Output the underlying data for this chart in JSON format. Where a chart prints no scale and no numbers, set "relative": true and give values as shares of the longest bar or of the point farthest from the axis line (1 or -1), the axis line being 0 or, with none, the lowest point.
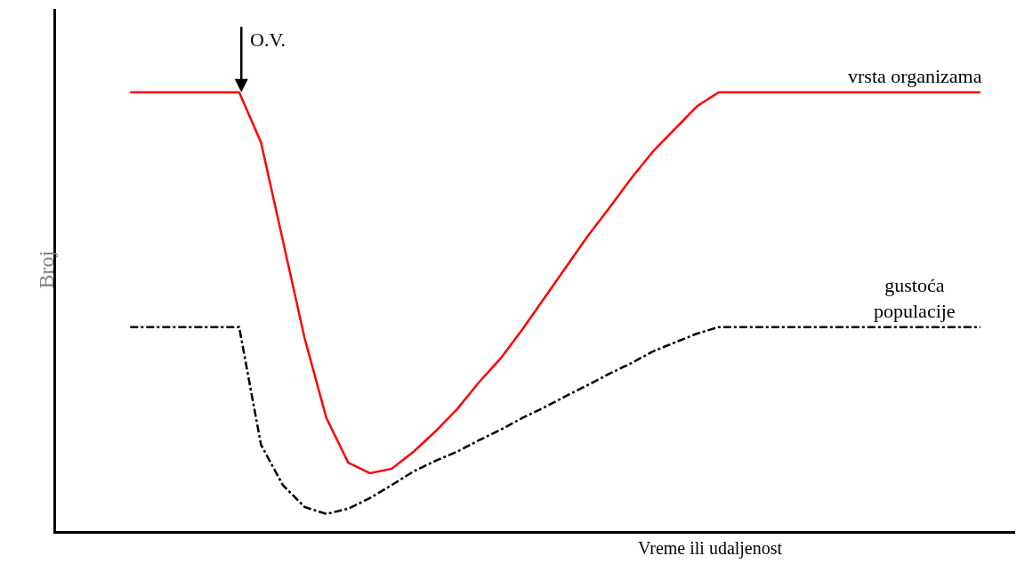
{
  "chart_data": {
    "type": "line",
    "relative": true,
    "ylabel": "Broj",
    "xlabel": "Vreme ili udaljenost",
    "annotations": [
      "O.V."
    ],
    "legend": false,
    "marker": "none",
    "categories": [
      null,
      null,
      null,
      null,
      null,
      null,
      null,
      null,
      null,
      null,
      null,
      null,
      null,
      null,
      null,
      null,
      null,
      null,
      null,
      null,
      null,
      null,
      null,
      null,
      null,
      null,
      null,
      null,
      null,
      null,
      null,
      null,
      null,
      null,
      null,
      null,
      null,
      null,
      null,
      null
    ],
    "series": [
      {
        "name": "vrsta organizama",
        "color": "#ff0000",
        "line_style": "solid",
        "values": [
          1,
          1,
          1,
          1,
          1,
          1,
          0.886,
          0.663,
          0.44,
          0.258,
          0.156,
          0.132,
          0.142,
          0.181,
          0.227,
          0.278,
          0.339,
          0.394,
          0.46,
          0.531,
          0.602,
          0.673,
          0.738,
          0.805,
          0.866,
          0.917,
          0.968,
          1,
          1,
          1,
          1,
          1,
          1,
          1,
          1,
          1,
          1,
          1,
          1,
          1
        ]
      },
      {
        "name": "gustoća\npopulacije",
        "color": "#000000",
        "line_style": "dashdot",
        "values": [
          0.465,
          0.465,
          0.465,
          0.465,
          0.465,
          0.465,
          0.197,
          0.105,
          0.055,
          0.039,
          0.051,
          0.075,
          0.105,
          0.136,
          0.16,
          0.181,
          0.207,
          0.231,
          0.258,
          0.282,
          0.308,
          0.333,
          0.359,
          0.383,
          0.41,
          0.43,
          0.45,
          0.465,
          0.465,
          0.465,
          0.465,
          0.465,
          0.465,
          0.465,
          0.465,
          0.465,
          0.465,
          0.465,
          0.465,
          0.465
        ]
      }
    ]
  }
}
